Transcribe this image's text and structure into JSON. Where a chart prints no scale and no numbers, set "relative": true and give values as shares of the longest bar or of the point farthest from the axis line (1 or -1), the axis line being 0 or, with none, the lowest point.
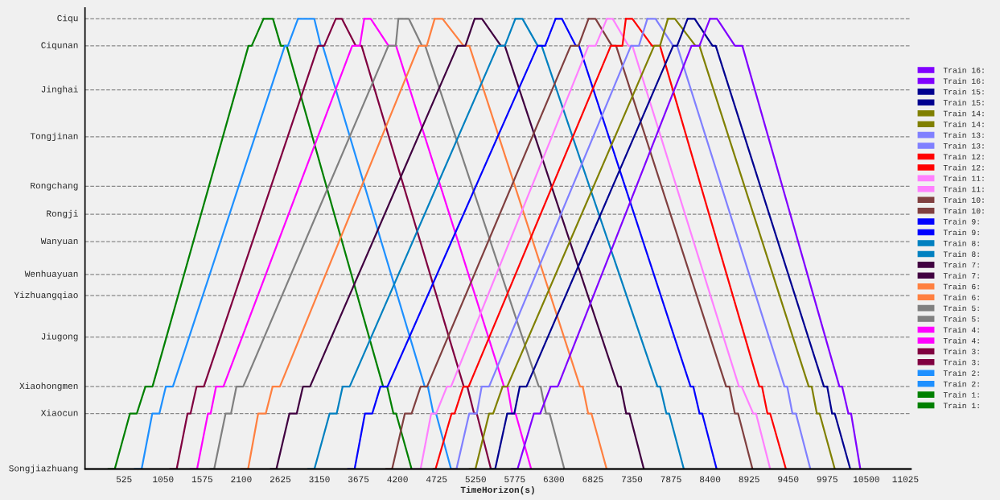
{
  "chart_data": {
    "type": "line",
    "xlabel": "TimeHorizon(s)",
    "relative": true,
    "xlim": [
      0,
      11100
    ],
    "xticks": [
      525,
      1050,
      1575,
      2100,
      2625,
      3150,
      3675,
      4200,
      4725,
      5250,
      5775,
      6300,
      6825,
      7350,
      7875,
      8400,
      8925,
      9450,
      9975,
      10500,
      11025
    ],
    "ref_lines": [
      {
        "axis": "y",
        "value": 0,
        "label": "Songjiazhuang",
        "color": "#000000",
        "line_style": "solid"
      },
      {
        "axis": "y",
        "value": 0.123,
        "label": "Xiaocun",
        "color": "#888888",
        "line_style": "dashed"
      },
      {
        "axis": "y",
        "value": 0.183,
        "label": "Xiaohongmen",
        "color": "#888888",
        "line_style": "dashed"
      },
      {
        "axis": "y",
        "value": 0.293,
        "label": "Jiugong",
        "color": "#888888",
        "line_style": "dashed"
      },
      {
        "axis": "y",
        "value": 0.385,
        "label": "Yizhuangqiao",
        "color": "#888888",
        "line_style": "dashed"
      },
      {
        "axis": "y",
        "value": 0.432,
        "label": "Wenhuayuan",
        "color": "#888888",
        "line_style": "dashed"
      },
      {
        "axis": "y",
        "value": 0.505,
        "label": "Wanyuan",
        "color": "#888888",
        "line_style": "dashed"
      },
      {
        "axis": "y",
        "value": 0.566,
        "label": "Rongji",
        "color": "#888888",
        "line_style": "dashed"
      },
      {
        "axis": "y",
        "value": 0.628,
        "label": "Rongchang",
        "color": "#888888",
        "line_style": "dashed"
      },
      {
        "axis": "y",
        "value": 0.738,
        "label": "Tongjinan",
        "color": "#888888",
        "line_style": "dashed"
      },
      {
        "axis": "y",
        "value": 0.842,
        "label": "Jinghai",
        "color": "#888888",
        "line_style": "dashed"
      },
      {
        "axis": "y",
        "value": 0.94,
        "label": "Ciqunan",
        "color": "#888888",
        "line_style": "dashed"
      },
      {
        "axis": "y",
        "value": 1,
        "label": "Ciqu",
        "color": "#888888",
        "line_style": "dashed"
      }
    ],
    "legend": "right",
    "marker": "none",
    "line_style": "solid",
    "series": [
      {
        "name": "Train 1:",
        "color": "#008000",
        "x": [
          312,
          400,
          604,
          696,
          812,
          907,
          2197,
          2240,
          2399
        ],
        "values": [
          0,
          0,
          0.123,
          0.123,
          0.183,
          0.183,
          0.94,
          0.94,
          1
        ]
      },
      {
        "name": "Train 1:",
        "color": "#008000",
        "x": [
          2399,
          2526,
          2632,
          2710,
          4006,
          4061,
          4145,
          4181,
          4389
        ],
        "values": [
          1,
          1,
          0.94,
          0.94,
          0.183,
          0.183,
          0.123,
          0.123,
          0
        ]
      },
      {
        "name": "Train 2:",
        "color": "#1e90ff",
        "x": [
          666,
          761,
          904,
          999,
          1086,
          1181,
          2685,
          2727,
          2862
        ],
        "values": [
          0,
          0,
          0.123,
          0.123,
          0.183,
          0.183,
          0.94,
          0.94,
          1
        ]
      },
      {
        "name": "Train 2:",
        "color": "#1e90ff",
        "x": [
          2862,
          3081,
          3169,
          3194,
          4565,
          4608,
          4682,
          4718,
          4919
        ],
        "values": [
          1,
          1,
          0.94,
          0.94,
          0.183,
          0.183,
          0.123,
          0.123,
          0
        ]
      },
      {
        "name": "Train 3:",
        "color": "#800040",
        "x": [
          1141,
          1232,
          1378,
          1418,
          1499,
          1597,
          3134,
          3215,
          3370
        ],
        "values": [
          0,
          0,
          0.123,
          0.123,
          0.183,
          0.183,
          0.94,
          0.94,
          1
        ]
      },
      {
        "name": "Train 3:",
        "color": "#800040",
        "x": [
          3370,
          3452,
          3639,
          3717,
          5090,
          5138,
          5229,
          5265,
          5455
        ],
        "values": [
          1,
          1,
          0.94,
          0.94,
          0.183,
          0.183,
          0.123,
          0.123,
          0
        ]
      },
      {
        "name": "Train 4:",
        "color": "#ff00ff",
        "x": [
          1415,
          1506,
          1652,
          1688,
          1761,
          1860,
          3591,
          3693,
          3752
        ],
        "values": [
          0,
          0,
          0.123,
          0.123,
          0.183,
          0.183,
          0.94,
          0.94,
          1
        ]
      },
      {
        "name": "Train 4:",
        "color": "#ff00ff",
        "x": [
          3752,
          3840,
          4079,
          4180,
          5631,
          5678,
          5740,
          5787,
          5996
        ],
        "values": [
          1,
          1,
          0.94,
          0.94,
          0.183,
          0.183,
          0.123,
          0.123,
          0
        ]
      },
      {
        "name": "Train 5:",
        "color": "#808080",
        "x": [
          1681,
          1736,
          1889,
          1962,
          2035,
          2126,
          4077,
          4176,
          4211
        ],
        "values": [
          0,
          0,
          0.123,
          0.123,
          0.183,
          0.183,
          0.94,
          0.94,
          1
        ]
      },
      {
        "name": "Train 5:",
        "color": "#808080",
        "x": [
          4211,
          4352,
          4529,
          4572,
          6098,
          6123,
          6196,
          6244,
          6441
        ],
        "values": [
          1,
          1,
          0.94,
          0.94,
          0.183,
          0.183,
          0.123,
          0.123,
          0
        ]
      },
      {
        "name": "Train 6:",
        "color": "#ff8040",
        "x": [
          2097,
          2192,
          2327,
          2429,
          2521,
          2619,
          4487,
          4593,
          4699
        ],
        "values": [
          0,
          0,
          0.123,
          0.123,
          0.183,
          0.183,
          0.94,
          0.94,
          1
        ]
      },
      {
        "name": "Train 6:",
        "color": "#ff8040",
        "x": [
          4699,
          4805,
          5087,
          5165,
          6653,
          6689,
          6762,
          6806,
          7010
        ],
        "values": [
          1,
          1,
          0.94,
          0.94,
          0.183,
          0.183,
          0.123,
          0.123,
          0
        ]
      },
      {
        "name": "Train 7:",
        "color": "#400040",
        "x": [
          2491,
          2572,
          2747,
          2845,
          2929,
          3024,
          5006,
          5112,
          5236
        ],
        "values": [
          0,
          0,
          0.123,
          0.123,
          0.183,
          0.183,
          0.94,
          0.94,
          1
        ]
      },
      {
        "name": "Train 7:",
        "color": "#400040",
        "x": [
          5236,
          5335,
          5589,
          5642,
          7164,
          7200,
          7273,
          7317,
          7510
        ],
        "values": [
          1,
          1,
          0.94,
          0.94,
          0.183,
          0.183,
          0.123,
          0.123,
          0
        ]
      },
      {
        "name": "Train 8:",
        "color": "#0080c0",
        "x": [
          2995,
          3083,
          3287,
          3382,
          3462,
          3557,
          5547,
          5642,
          5783
        ],
        "values": [
          0,
          0,
          0.123,
          0.123,
          0.183,
          0.183,
          0.94,
          0.94,
          1
        ]
      },
      {
        "name": "Train 8:",
        "color": "#0080c0",
        "x": [
          5783,
          5879,
          6084,
          6137,
          7693,
          7729,
          7813,
          7850,
          8047
        ],
        "values": [
          1,
          1,
          0.94,
          0.94,
          0.183,
          0.183,
          0.123,
          0.123,
          0
        ]
      },
      {
        "name": "Train 9:",
        "color": "#0000ff",
        "x": [
          3532,
          3623,
          3762,
          3860,
          3970,
          4065,
          6084,
          6183,
          6324
        ],
        "values": [
          0,
          0,
          0.123,
          0.123,
          0.183,
          0.183,
          0.94,
          0.94,
          1
        ]
      },
      {
        "name": "Train 9:",
        "color": "#0000ff",
        "x": [
          6324,
          6409,
          6596,
          6639,
          8138,
          8175,
          8259,
          8295,
          8488
        ],
        "values": [
          1,
          1,
          0.94,
          0.94,
          0.183,
          0.183,
          0.123,
          0.123,
          0
        ]
      },
      {
        "name": "Train 10:",
        "color": "#804040",
        "x": [
          4043,
          4127,
          4298,
          4389,
          4510,
          4597,
          6526,
          6632,
          6766
        ],
        "values": [
          0,
          0,
          0.123,
          0.123,
          0.183,
          0.183,
          0.94,
          0.94,
          1
        ]
      },
      {
        "name": "Train 10:",
        "color": "#804040",
        "x": [
          6766,
          6861,
          7080,
          7137,
          8616,
          8660,
          8733,
          8777,
          8970
        ],
        "values": [
          1,
          1,
          0.94,
          0.94,
          0.183,
          0.183,
          0.123,
          0.123,
          0
        ]
      },
      {
        "name": "Train 11:",
        "color": "#ff80ff",
        "x": [
          4419,
          4510,
          4652,
          4718,
          4864,
          4919,
          6766,
          6861,
          7013
        ],
        "values": [
          0,
          0,
          0.123,
          0.123,
          0.183,
          0.183,
          0.94,
          0.94,
          1
        ]
      },
      {
        "name": "Train 11:",
        "color": "#ff80ff",
        "x": [
          7013,
          7091,
          7303,
          7356,
          8788,
          8824,
          8981,
          9018,
          9208
        ],
        "values": [
          1,
          1,
          0.94,
          0.94,
          0.183,
          0.183,
          0.123,
          0.123,
          0
        ]
      },
      {
        "name": "Train 12:",
        "color": "#ff0000",
        "x": [
          4682,
          4711,
          4926,
          4966,
          5083,
          5156,
          7066,
          7222,
          7268
        ],
        "values": [
          0,
          0,
          0.123,
          0.123,
          0.183,
          0.183,
          0.94,
          0.94,
          1
        ]
      },
      {
        "name": "Train 12:",
        "color": "#ff0000",
        "x": [
          7268,
          7356,
          7621,
          7727,
          9062,
          9098,
          9171,
          9208,
          9419
        ],
        "values": [
          1,
          1,
          0.94,
          0.94,
          0.183,
          0.183,
          0.123,
          0.123,
          0
        ]
      },
      {
        "name": "Train 13:",
        "color": "#8080ff",
        "x": [
          4919,
          4992,
          5163,
          5265,
          5331,
          5430,
          7338,
          7444,
          7557
        ],
        "values": [
          0,
          0,
          0.123,
          0.123,
          0.183,
          0.183,
          0.94,
          0.94,
          1
        ]
      },
      {
        "name": "Train 13:",
        "color": "#8080ff",
        "x": [
          7557,
          7667,
          7904,
          7957,
          9401,
          9437,
          9507,
          9554,
          9748
        ],
        "values": [
          1,
          1,
          0.94,
          0.94,
          0.183,
          0.183,
          0.123,
          0.123,
          0
        ]
      },
      {
        "name": "Train 14:",
        "color": "#808000",
        "x": [
          5167,
          5247,
          5430,
          5485,
          5612,
          5674,
          7649,
          7727,
          7833
        ],
        "values": [
          0,
          0,
          0.123,
          0.123,
          0.183,
          0.183,
          0.94,
          0.94,
          1
        ]
      },
      {
        "name": "Train 14:",
        "color": "#808000",
        "x": [
          7833,
          7928,
          8204,
          8257,
          9726,
          9766,
          9835,
          9872,
          10076
        ],
        "values": [
          1,
          1,
          0.94,
          0.94,
          0.183,
          0.183,
          0.123,
          0.123,
          0
        ]
      },
      {
        "name": "Train 15:",
        "color": "#000090",
        "x": [
          5440,
          5512,
          5674,
          5769,
          5842,
          5933,
          7904,
          7957,
          8098
        ],
        "values": [
          0,
          0,
          0.123,
          0.123,
          0.183,
          0.183,
          0.94,
          0.94,
          1
        ]
      },
      {
        "name": "Train 15:",
        "color": "#000090",
        "x": [
          8098,
          8193,
          8433,
          8476,
          9930,
          9974,
          10040,
          10076,
          10284
        ],
        "values": [
          1,
          1,
          0.94,
          0.94,
          0.183,
          0.183,
          0.123,
          0.123,
          0
        ]
      },
      {
        "name": "Train 16:",
        "color": "#8000ff",
        "x": [
          5733,
          5813,
          6032,
          6116,
          6258,
          6353,
          8151,
          8257,
          8398
        ],
        "values": [
          0,
          0,
          0.123,
          0.123,
          0.183,
          0.183,
          0.94,
          0.94,
          1
        ]
      },
      {
        "name": "Train 16:",
        "color": "#8000ff",
        "x": [
          8398,
          8494,
          8734,
          8833,
          10138,
          10175,
          10259,
          10295,
          10419
        ],
        "values": [
          1,
          1,
          0.94,
          0.94,
          0.183,
          0.183,
          0.123,
          0.123,
          0
        ]
      }
    ]
  }
}
